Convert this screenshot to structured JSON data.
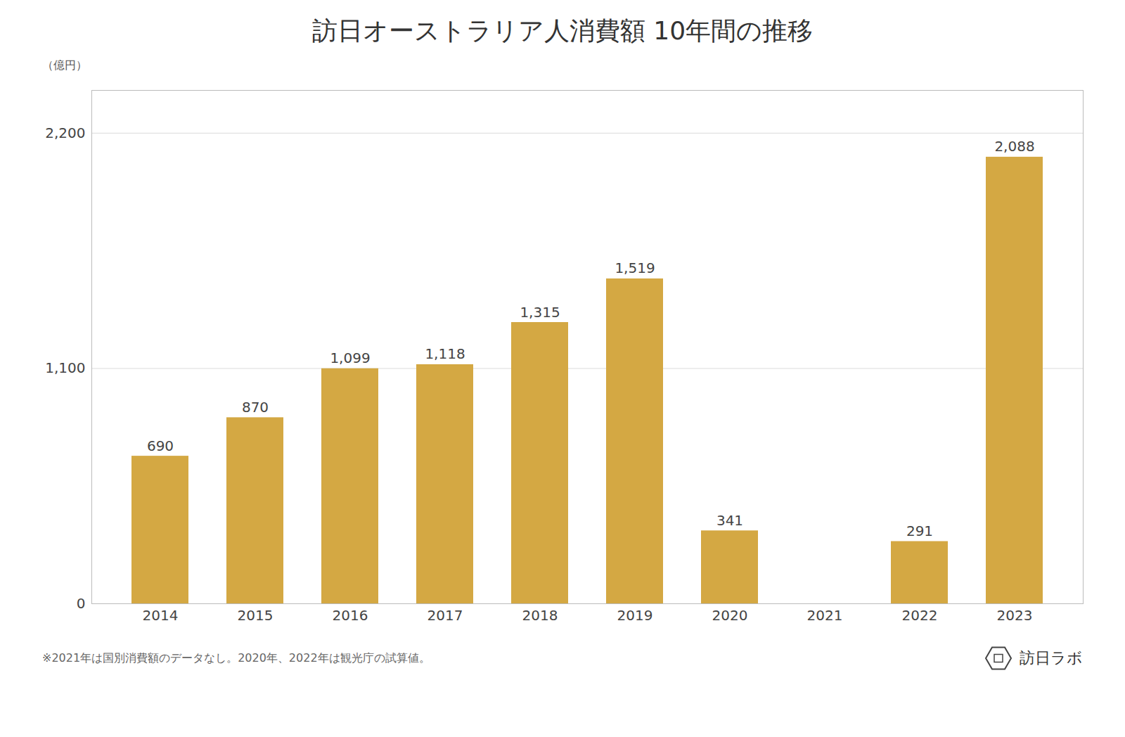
{
  "chart_data": {
    "type": "bar",
    "title": "訪日オーストラリア人消費額 10年間の推移",
    "ylabel": "（億円）",
    "categories": [
      "2014",
      "2015",
      "2016",
      "2017",
      "2018",
      "2019",
      "2020",
      "2021",
      "2022",
      "2023"
    ],
    "values": [
      690,
      870,
      1099,
      1118,
      1315,
      1519,
      341,
      0,
      291,
      2088
    ],
    "value_labels": [
      "690",
      "870",
      "1,099",
      "1,118",
      "1,315",
      "1,519",
      "341",
      null,
      "291",
      "2,088"
    ],
    "data_labels": true,
    "color": "#D4A843",
    "ylim": [
      0,
      2400
    ],
    "yticks": [
      0,
      {
        "value": 1100,
        "label": "1,100"
      },
      {
        "value": 2200,
        "label": "2,200"
      }
    ],
    "grid": true,
    "caption": "※2021年は国別消費額のデータなし。2020年、2022年は観光庁の試算値。",
    "annotations": [
      "訪日ラボ"
    ]
  }
}
